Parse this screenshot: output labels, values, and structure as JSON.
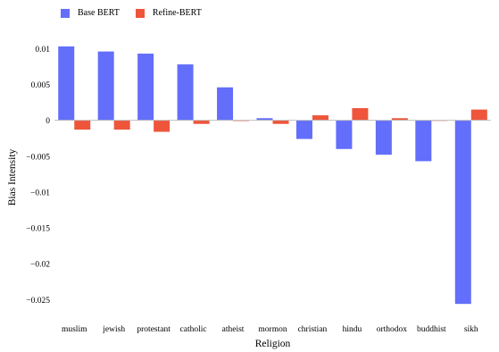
{
  "chart_data": {
    "type": "bar",
    "categories": [
      "muslim",
      "jewish",
      "protestant",
      "catholic",
      "atheist",
      "mormon",
      "christian",
      "hindu",
      "orthodox",
      "buddhist",
      "sikh"
    ],
    "series": [
      {
        "name": "Base BERT",
        "color": "#636efa",
        "values": [
          0.0103,
          0.0096,
          0.0093,
          0.0078,
          0.0046,
          0.0003,
          -0.0026,
          -0.004,
          -0.0048,
          -0.0057,
          -0.0256
        ]
      },
      {
        "name": "Refine-BERT",
        "color": "#ef553b",
        "values": [
          -0.0013,
          -0.0013,
          -0.0016,
          -0.0005,
          -0.0001,
          -0.0005,
          0.0007,
          0.0017,
          0.0003,
          0.0,
          0.0015
        ]
      }
    ],
    "xlabel": "Religion",
    "ylabel": "Bias Intensity",
    "ylim": [
      -0.0262,
      0.0103
    ],
    "yticks": [
      0.01,
      0.005,
      0,
      -0.005,
      -0.01,
      -0.015,
      -0.02,
      -0.025
    ],
    "ytick_labels": [
      "0.01",
      "0.005",
      "0",
      "−0.005",
      "−0.01",
      "−0.015",
      "−0.02",
      "−0.025"
    ],
    "legend_position": "top-left",
    "grid": false
  }
}
